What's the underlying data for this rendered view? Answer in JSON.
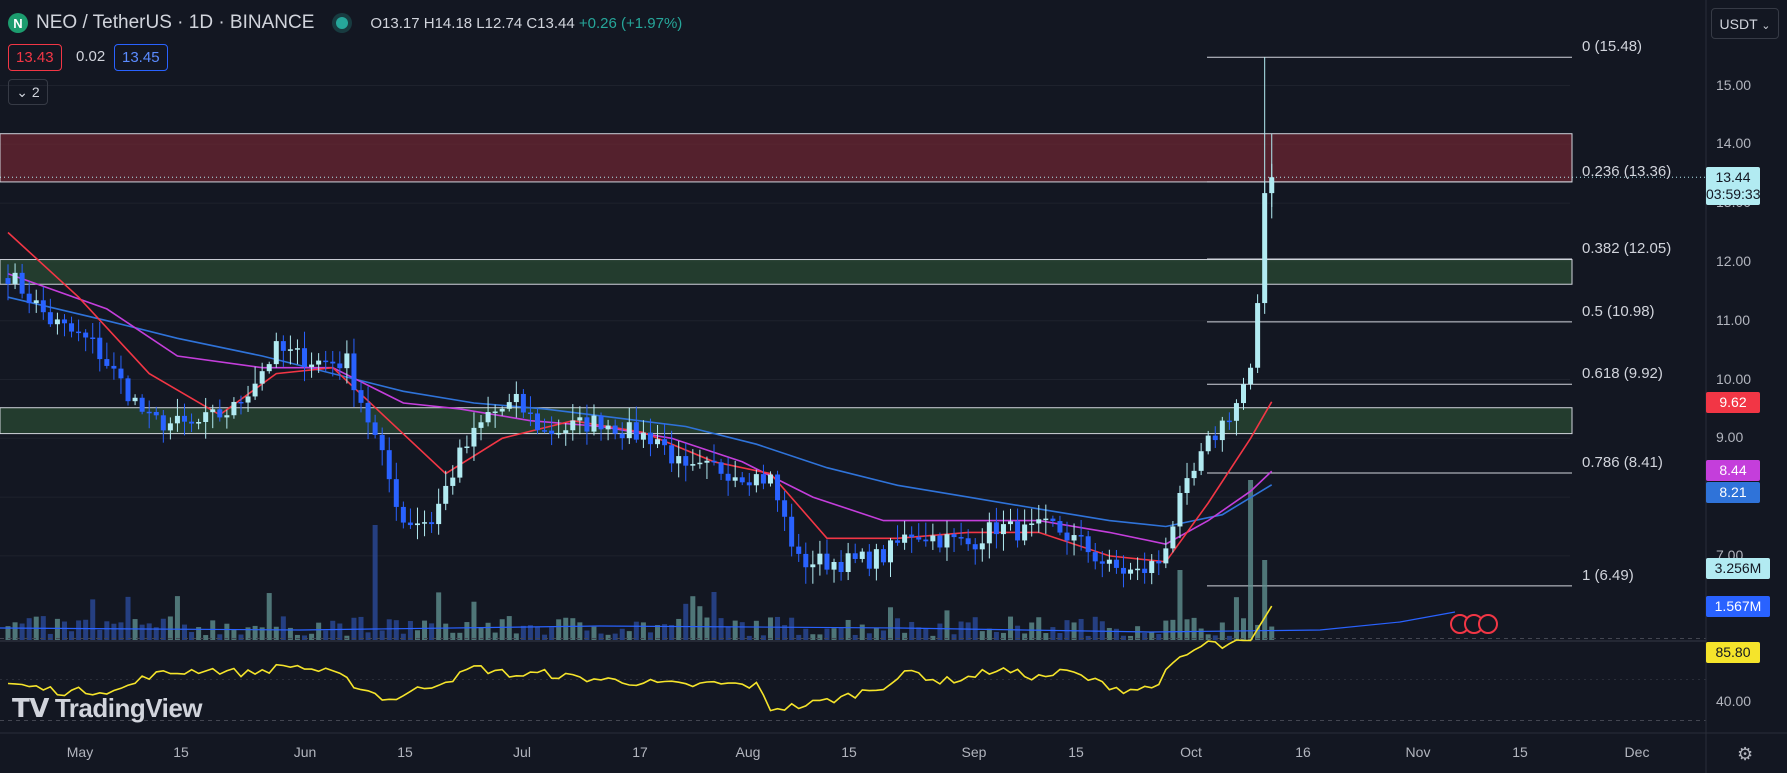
{
  "header": {
    "symbol": "NEO / TetherUS · 1D · BINANCE",
    "ohlc_prefix": "O13.17 H14.18 L12.74 C13.44",
    "change": "+0.26 (+1.97%)",
    "bid": "13.43",
    "spread": "0.02",
    "ask": "13.45",
    "collapse_label": "2",
    "currency": "USDT"
  },
  "tags": {
    "last_price": "13.44",
    "countdown": "03:59:33",
    "ma_red": "9.62",
    "ma_magenta": "8.44",
    "ma_blue": "8.21",
    "volume": "3.256M",
    "volume_ma": "1.567M",
    "rsi": "85.80"
  },
  "colors": {
    "background": "#131722",
    "bull": "#b2ebf2",
    "bear": "#2962ff",
    "ma_red": "#f23645",
    "ma_magenta": "#c43edb",
    "ma_blue": "#2f73d9",
    "rsi": "#f5e42b",
    "resistance_zone": "#6b2632",
    "support_zone": "#2a4a33"
  },
  "branding": "TradingView",
  "chart_data": {
    "type": "candlestick",
    "y_axis": {
      "ticks": [
        7,
        8,
        9,
        10,
        11,
        12,
        13,
        14,
        15
      ],
      "tick_labels": [
        "7.00",
        "8.00",
        "9.00",
        "10.00",
        "11.00",
        "12.00",
        "13.00",
        "14.00",
        "15.00"
      ],
      "ylim": [
        5.6,
        15.9
      ]
    },
    "rsi_axis": {
      "ticks": [
        40
      ],
      "tick_labels": [
        "40.00"
      ]
    },
    "x_axis": {
      "tick_labels": [
        "May",
        "15",
        "Jun",
        "15",
        "Jul",
        "17",
        "Aug",
        "15",
        "Sep",
        "15",
        "Oct",
        "16",
        "Nov",
        "15",
        "Dec"
      ]
    },
    "fib_levels": [
      {
        "label": "0 (15.48)",
        "value": 15.48
      },
      {
        "label": "0.236 (13.36)",
        "value": 13.36
      },
      {
        "label": "0.382 (12.05)",
        "value": 12.05
      },
      {
        "label": "0.5 (10.98)",
        "value": 10.98
      },
      {
        "label": "0.618 (9.92)",
        "value": 9.92
      },
      {
        "label": "0.786 (8.41)",
        "value": 8.41
      },
      {
        "label": "1 (6.49)",
        "value": 6.49
      }
    ],
    "zones": [
      {
        "kind": "resistance",
        "from": 13.36,
        "to": 14.18
      },
      {
        "kind": "support",
        "from": 11.62,
        "to": 12.04
      },
      {
        "kind": "support",
        "from": 9.08,
        "to": 9.52
      }
    ],
    "last_close": 13.44,
    "price_path": [
      [
        0,
        11.8
      ],
      [
        6,
        11.0
      ],
      [
        12,
        10.6
      ],
      [
        20,
        9.3
      ],
      [
        26,
        9.2
      ],
      [
        32,
        9.5
      ],
      [
        38,
        10.5
      ],
      [
        44,
        10.3
      ],
      [
        48,
        10.3
      ],
      [
        52,
        9.0
      ],
      [
        56,
        7.6
      ],
      [
        60,
        7.6
      ],
      [
        64,
        8.7
      ],
      [
        68,
        9.4
      ],
      [
        72,
        9.6
      ],
      [
        76,
        9.1
      ],
      [
        80,
        9.2
      ],
      [
        84,
        9.3
      ],
      [
        88,
        9.1
      ],
      [
        92,
        9.0
      ],
      [
        96,
        8.4
      ],
      [
        100,
        8.5
      ],
      [
        104,
        8.4
      ],
      [
        108,
        8.3
      ],
      [
        112,
        6.9
      ],
      [
        116,
        6.9
      ],
      [
        120,
        6.9
      ],
      [
        124,
        7.0
      ],
      [
        128,
        7.4
      ],
      [
        132,
        7.3
      ],
      [
        136,
        7.2
      ],
      [
        140,
        7.5
      ],
      [
        144,
        7.4
      ],
      [
        148,
        7.5
      ],
      [
        152,
        7.2
      ],
      [
        156,
        6.8
      ],
      [
        160,
        6.7
      ],
      [
        163,
        6.9
      ],
      [
        166,
        7.9
      ],
      [
        170,
        8.9
      ],
      [
        174,
        9.6
      ],
      [
        176,
        10.2
      ],
      [
        177,
        11.3
      ],
      [
        178,
        13.17
      ],
      [
        179,
        13.44
      ]
    ],
    "ma_red": [
      [
        0,
        12.5
      ],
      [
        10,
        11.4
      ],
      [
        20,
        10.1
      ],
      [
        30,
        9.4
      ],
      [
        38,
        10.1
      ],
      [
        46,
        10.2
      ],
      [
        54,
        9.3
      ],
      [
        62,
        8.4
      ],
      [
        70,
        9.0
      ],
      [
        80,
        9.3
      ],
      [
        90,
        9.1
      ],
      [
        100,
        8.6
      ],
      [
        108,
        8.4
      ],
      [
        116,
        7.3
      ],
      [
        126,
        7.3
      ],
      [
        136,
        7.4
      ],
      [
        146,
        7.4
      ],
      [
        156,
        7.0
      ],
      [
        164,
        6.9
      ],
      [
        170,
        7.9
      ],
      [
        176,
        9.0
      ],
      [
        179,
        9.62
      ]
    ],
    "ma_magenta": [
      [
        0,
        11.8
      ],
      [
        14,
        11.2
      ],
      [
        24,
        10.4
      ],
      [
        36,
        10.2
      ],
      [
        46,
        10.2
      ],
      [
        56,
        9.6
      ],
      [
        64,
        9.5
      ],
      [
        74,
        9.3
      ],
      [
        84,
        9.2
      ],
      [
        94,
        9.0
      ],
      [
        104,
        8.6
      ],
      [
        114,
        8.0
      ],
      [
        124,
        7.6
      ],
      [
        134,
        7.6
      ],
      [
        146,
        7.6
      ],
      [
        156,
        7.4
      ],
      [
        164,
        7.2
      ],
      [
        170,
        7.6
      ],
      [
        176,
        8.1
      ],
      [
        179,
        8.44
      ]
    ],
    "ma_blue": [
      [
        0,
        11.4
      ],
      [
        14,
        11.0
      ],
      [
        24,
        10.7
      ],
      [
        36,
        10.4
      ],
      [
        46,
        10.1
      ],
      [
        56,
        9.8
      ],
      [
        66,
        9.6
      ],
      [
        76,
        9.5
      ],
      [
        86,
        9.35
      ],
      [
        96,
        9.2
      ],
      [
        106,
        8.9
      ],
      [
        116,
        8.5
      ],
      [
        126,
        8.2
      ],
      [
        136,
        8.0
      ],
      [
        146,
        7.8
      ],
      [
        156,
        7.6
      ],
      [
        164,
        7.5
      ],
      [
        172,
        7.7
      ],
      [
        179,
        8.21
      ]
    ],
    "rsi": [
      [
        0,
        48
      ],
      [
        8,
        44
      ],
      [
        16,
        45
      ],
      [
        20,
        52
      ],
      [
        28,
        55
      ],
      [
        34,
        53
      ],
      [
        40,
        57
      ],
      [
        46,
        53
      ],
      [
        50,
        46
      ],
      [
        54,
        40
      ],
      [
        58,
        45
      ],
      [
        64,
        52
      ],
      [
        66,
        56
      ],
      [
        72,
        52
      ],
      [
        76,
        53
      ],
      [
        80,
        51
      ],
      [
        84,
        50
      ],
      [
        88,
        49
      ],
      [
        96,
        47
      ],
      [
        100,
        48
      ],
      [
        106,
        47
      ],
      [
        108,
        36
      ],
      [
        112,
        37
      ],
      [
        118,
        41
      ],
      [
        124,
        47
      ],
      [
        128,
        54
      ],
      [
        132,
        49
      ],
      [
        136,
        51
      ],
      [
        140,
        55
      ],
      [
        146,
        51
      ],
      [
        150,
        54
      ],
      [
        154,
        49
      ],
      [
        158,
        45
      ],
      [
        162,
        46
      ],
      [
        166,
        60
      ],
      [
        170,
        68
      ],
      [
        172,
        66
      ],
      [
        176,
        69
      ],
      [
        179,
        85.8
      ]
    ],
    "volume_note": "volume bars with moving average"
  }
}
